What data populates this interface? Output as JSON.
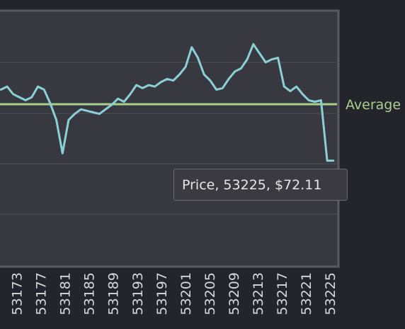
{
  "chart_data": {
    "type": "line",
    "x_tick_labels": [
      "53173",
      "53177",
      "53181",
      "53185",
      "53189",
      "53193",
      "53197",
      "53201",
      "53205",
      "53209",
      "53213",
      "53217",
      "53221",
      "53225"
    ],
    "series": [
      {
        "name": "Price",
        "color": "#8ad0d4",
        "x": [
          53171,
          53172,
          53173,
          53174,
          53175,
          53176,
          53177,
          53178,
          53179,
          53180,
          53181,
          53182,
          53183,
          53184,
          53185,
          53186,
          53187,
          53188,
          53189,
          53190,
          53191,
          53192,
          53193,
          53194,
          53195,
          53196,
          53197,
          53198,
          53199,
          53200,
          53201,
          53202,
          53203,
          53204,
          53205,
          53206,
          53207,
          53208,
          53209,
          53210,
          53211,
          53212,
          53213,
          53214,
          53215,
          53216,
          53217,
          53218,
          53219,
          53220,
          53221,
          53222,
          53223,
          53224,
          53225
        ],
        "y": [
          76.8,
          77.0,
          76.5,
          76.3,
          76.1,
          76.3,
          77.0,
          76.8,
          75.9,
          74.8,
          72.6,
          74.8,
          75.2,
          75.5,
          75.4,
          75.3,
          75.2,
          75.5,
          75.8,
          76.2,
          76.0,
          76.5,
          77.1,
          76.9,
          77.1,
          77.0,
          77.3,
          77.5,
          77.4,
          77.8,
          78.3,
          79.6,
          78.9,
          77.8,
          77.4,
          76.8,
          76.9,
          77.5,
          78.0,
          78.2,
          78.8,
          79.8,
          79.2,
          78.6,
          78.8,
          78.9,
          77.0,
          76.7,
          77.0,
          76.5,
          76.1,
          76.0,
          76.1,
          72.11,
          72.11
        ]
      }
    ],
    "reference_lines": [
      {
        "label": "Average",
        "color": "#a8d08d"
      }
    ],
    "grid": true,
    "tooltip": {
      "text": "Price, 53225, $72.11"
    }
  },
  "colors": {
    "background": "#24242c",
    "plot_background": "#383841",
    "gridline": "#505058",
    "plot_border": "#5a5a60",
    "axis_text": "#d8d8d8"
  }
}
